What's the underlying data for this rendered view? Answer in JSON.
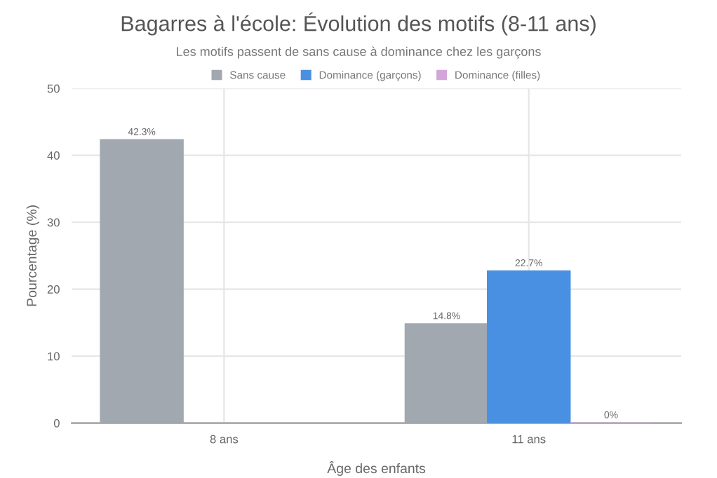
{
  "chart_data": {
    "type": "bar",
    "title": "Bagarres à l'école: Évolution des motifs (8-11 ans)",
    "subtitle": "Les motifs passent de sans cause à dominance chez les garçons",
    "xlabel": "Âge des enfants",
    "ylabel": "Pourcentage (%)",
    "categories": [
      "8 ans",
      "11 ans"
    ],
    "series": [
      {
        "name": "Sans cause",
        "color": "#a2a8b0",
        "values": [
          42.3,
          14.8
        ],
        "value_labels": [
          "42.3%",
          "14.8%"
        ]
      },
      {
        "name": "Dominance (garçons)",
        "color": "#4a90e2",
        "values": [
          null,
          22.7
        ],
        "value_labels": [
          null,
          "22.7%"
        ]
      },
      {
        "name": "Dominance (filles)",
        "color": "#d4a5d8",
        "values": [
          null,
          0
        ],
        "value_labels": [
          null,
          "0%"
        ]
      }
    ],
    "ylim": [
      0,
      50
    ],
    "yticks": [
      0,
      10,
      20,
      30,
      40,
      50
    ],
    "grid": true,
    "legend": "top"
  }
}
